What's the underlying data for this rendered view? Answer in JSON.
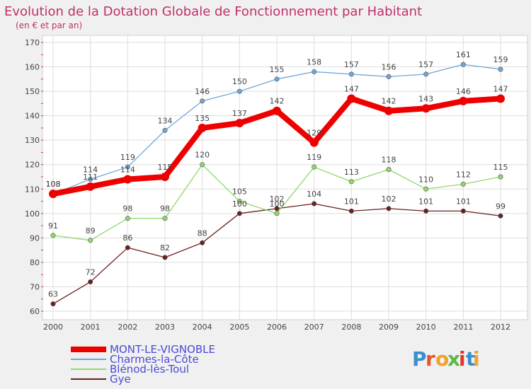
{
  "chart_data": {
    "type": "line",
    "title": "Evolution de la Dotation Globale de Fonctionnement par Habitant",
    "subtitle": "(en € et par an)",
    "x": [
      "2000",
      "2001",
      "2002",
      "2003",
      "2004",
      "2005",
      "2006",
      "2007",
      "2008",
      "2009",
      "2010",
      "2011",
      "2012"
    ],
    "ylim": [
      60,
      170
    ],
    "yticks": [
      60,
      70,
      80,
      90,
      100,
      110,
      120,
      130,
      140,
      150,
      160,
      170
    ],
    "grid": true,
    "legend_position": "bottom-left",
    "series": [
      {
        "name": "MONT-LE-VIGNOBLE",
        "color": "#ee0000",
        "values": [
          108,
          111,
          114,
          115,
          135,
          137,
          142,
          129,
          147,
          142,
          143,
          146,
          147
        ]
      },
      {
        "name": "Charmes-la-Côte",
        "color": "#6fa6d8",
        "values": [
          108,
          114,
          119,
          134,
          146,
          150,
          155,
          158,
          157,
          156,
          157,
          161,
          159
        ]
      },
      {
        "name": "Blénod-lès-Toul",
        "color": "#8fd86a",
        "values": [
          91,
          89,
          98,
          98,
          120,
          105,
          100,
          119,
          113,
          118,
          110,
          112,
          115
        ]
      },
      {
        "name": "Gye",
        "color": "#6b1f1f",
        "values": [
          63,
          72,
          86,
          82,
          88,
          100,
          102,
          104,
          101,
          102,
          101,
          101,
          99
        ]
      }
    ]
  },
  "logo": {
    "text": "Proxiti",
    "letter_colors": [
      "#3a8fd0",
      "#e8542b",
      "#f2a12a",
      "#5bb84a",
      "#e5342a",
      "#3a8fd0",
      "#f2a12a"
    ]
  }
}
